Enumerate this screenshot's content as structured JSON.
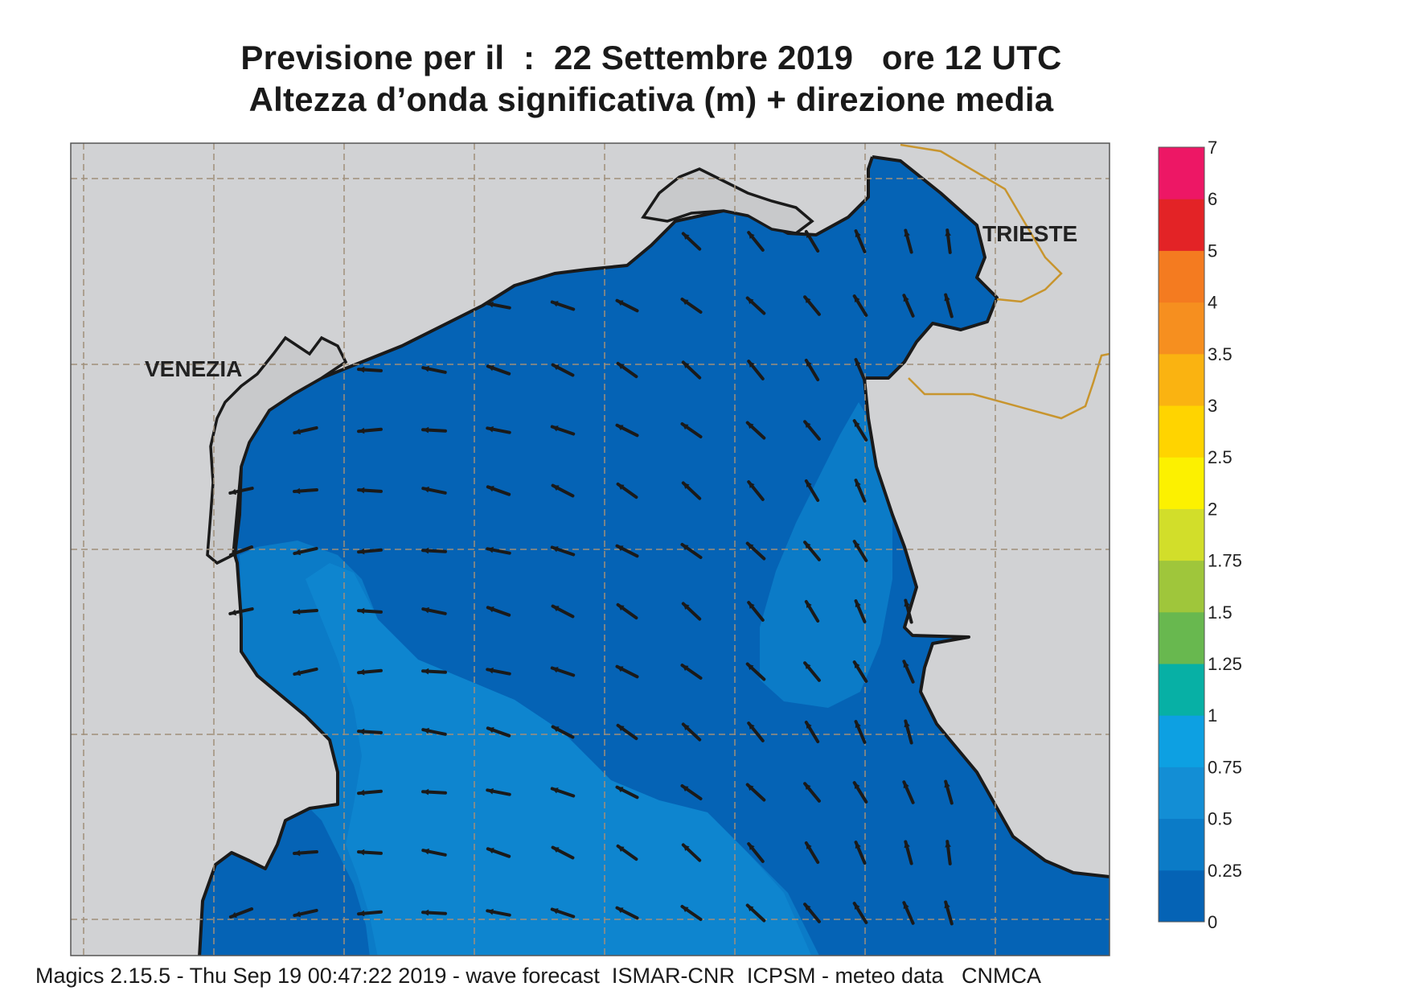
{
  "header": {
    "title_line1": "Previsione per il  :  22 Settembre 2019   ore 12 UTC",
    "title_line2": "Altezza d’onda significativa (m) + direzione media"
  },
  "cities": [
    {
      "name": "VENEZIA"
    },
    {
      "name": "TRIESTE"
    }
  ],
  "colorbar": {
    "ticks": [
      "0",
      "0.25",
      "0.5",
      "0.75",
      "1",
      "1.25",
      "1.5",
      "1.75",
      "2",
      "2.5",
      "3",
      "3.5",
      "4",
      "5",
      "6",
      "7"
    ],
    "colors": [
      "#0563b5",
      "#0b7bc7",
      "#138ed5",
      "#0da0e2",
      "#07b0a5",
      "#68b84f",
      "#9fc63b",
      "#d2de2a",
      "#fcf100",
      "#ffd400",
      "#fab311",
      "#f68f1f",
      "#f47b20",
      "#e32326",
      "#ed1765"
    ]
  },
  "map": {
    "sea_colors": {
      "low": "#0563b5",
      "mid": "#0b7bc7",
      "high": "#138ed5"
    },
    "land_color": "#d1d2d4",
    "border_color": "#c8952e",
    "grid_color": "#a08f7a"
  },
  "footer": {
    "text": "Magics 2.15.5 - Thu Sep 19 00:47:22 2019 - wave forecast  ISMAR-CNR  ICPSM - meteo data   CNMCA"
  }
}
